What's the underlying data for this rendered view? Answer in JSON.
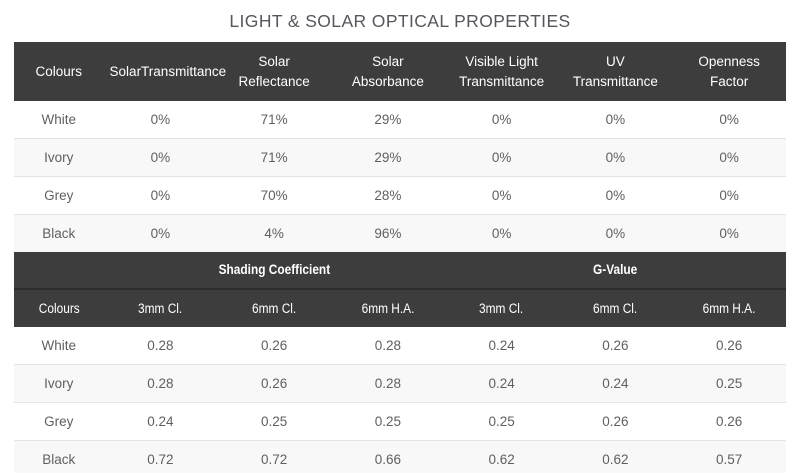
{
  "title": "LIGHT & SOLAR OPTICAL PROPERTIES",
  "colors": {
    "header_bg": "#3d3d3d",
    "header_text": "#ffffff",
    "body_text": "#606060",
    "row_bg": "#ffffff",
    "row_alt_bg": "#f8f8f8",
    "row_border": "#e4e4e4",
    "title_text": "#55575d",
    "group_divider": "#2d2d2d"
  },
  "chart_data": [
    {
      "type": "table",
      "name": "light-solar-optical-properties",
      "title": "LIGHT & SOLAR OPTICAL PROPERTIES",
      "columns": [
        "Colours",
        "SolarTransmittance",
        "Solar Reflectance",
        "Solar Absorbance",
        "Visible Light Transmittance",
        "UV Transmittance",
        "Openness Factor"
      ],
      "rows": [
        {
          "colour": "White",
          "values": [
            "0%",
            "71%",
            "29%",
            "0%",
            "0%",
            "0%"
          ]
        },
        {
          "colour": "Ivory",
          "values": [
            "0%",
            "71%",
            "29%",
            "0%",
            "0%",
            "0%"
          ]
        },
        {
          "colour": "Grey",
          "values": [
            "0%",
            "70%",
            "28%",
            "0%",
            "0%",
            "0%"
          ]
        },
        {
          "colour": "Black",
          "values": [
            "0%",
            "4%",
            "96%",
            "0%",
            "0%",
            "0%"
          ]
        }
      ]
    },
    {
      "type": "table",
      "name": "shading-coefficient-g-value",
      "groups": [
        {
          "label": "Shading Coefficient",
          "span": 3
        },
        {
          "label": "G-Value",
          "span": 3
        }
      ],
      "columns": [
        "Colours",
        "3mm Cl.",
        "6mm Cl.",
        "6mm H.A.",
        "3mm Cl.",
        "6mm Cl.",
        "6mm H.A."
      ],
      "rows": [
        {
          "colour": "White",
          "values": [
            "0.28",
            "0.26",
            "0.28",
            "0.24",
            "0.26",
            "0.26"
          ]
        },
        {
          "colour": "Ivory",
          "values": [
            "0.28",
            "0.26",
            "0.28",
            "0.24",
            "0.24",
            "0.25"
          ]
        },
        {
          "colour": "Grey",
          "values": [
            "0.24",
            "0.25",
            "0.25",
            "0.25",
            "0.26",
            "0.26"
          ]
        },
        {
          "colour": "Black",
          "values": [
            "0.72",
            "0.72",
            "0.66",
            "0.62",
            "0.62",
            "0.57"
          ]
        }
      ]
    }
  ]
}
